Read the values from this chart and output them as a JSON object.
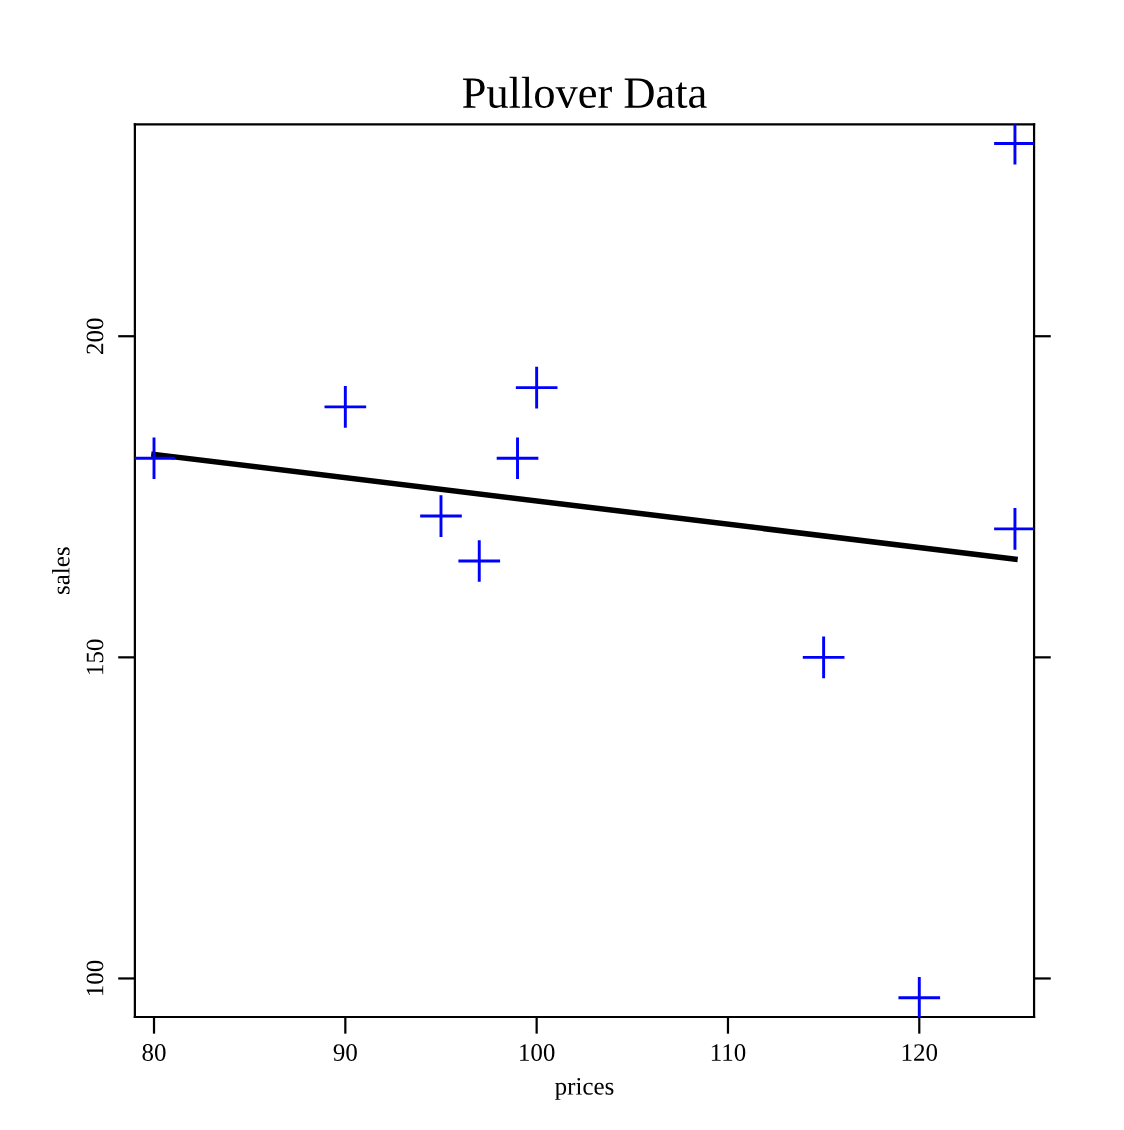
{
  "chart_data": {
    "type": "scatter",
    "title": "Pullover Data",
    "xlabel": "prices",
    "ylabel": "sales",
    "xlim": [
      79,
      126
    ],
    "ylim": [
      94,
      233
    ],
    "xticks": [
      80,
      90,
      100,
      110,
      120
    ],
    "yticks": [
      100,
      150,
      200
    ],
    "grid": false,
    "series": [
      {
        "color": "#0000ff",
        "marker": "cross",
        "x": [
          125,
          99,
          97,
          115,
          120,
          100,
          80,
          90,
          95,
          125
        ],
        "values": [
          230,
          181,
          165,
          150,
          97,
          192,
          181,
          189,
          172,
          170
        ]
      },
      {
        "type": "line",
        "color": "#000000",
        "marker": "none",
        "line_style": "solid",
        "x": [
          80,
          125
        ],
        "values": [
          181.6,
          165.3
        ]
      }
    ]
  }
}
